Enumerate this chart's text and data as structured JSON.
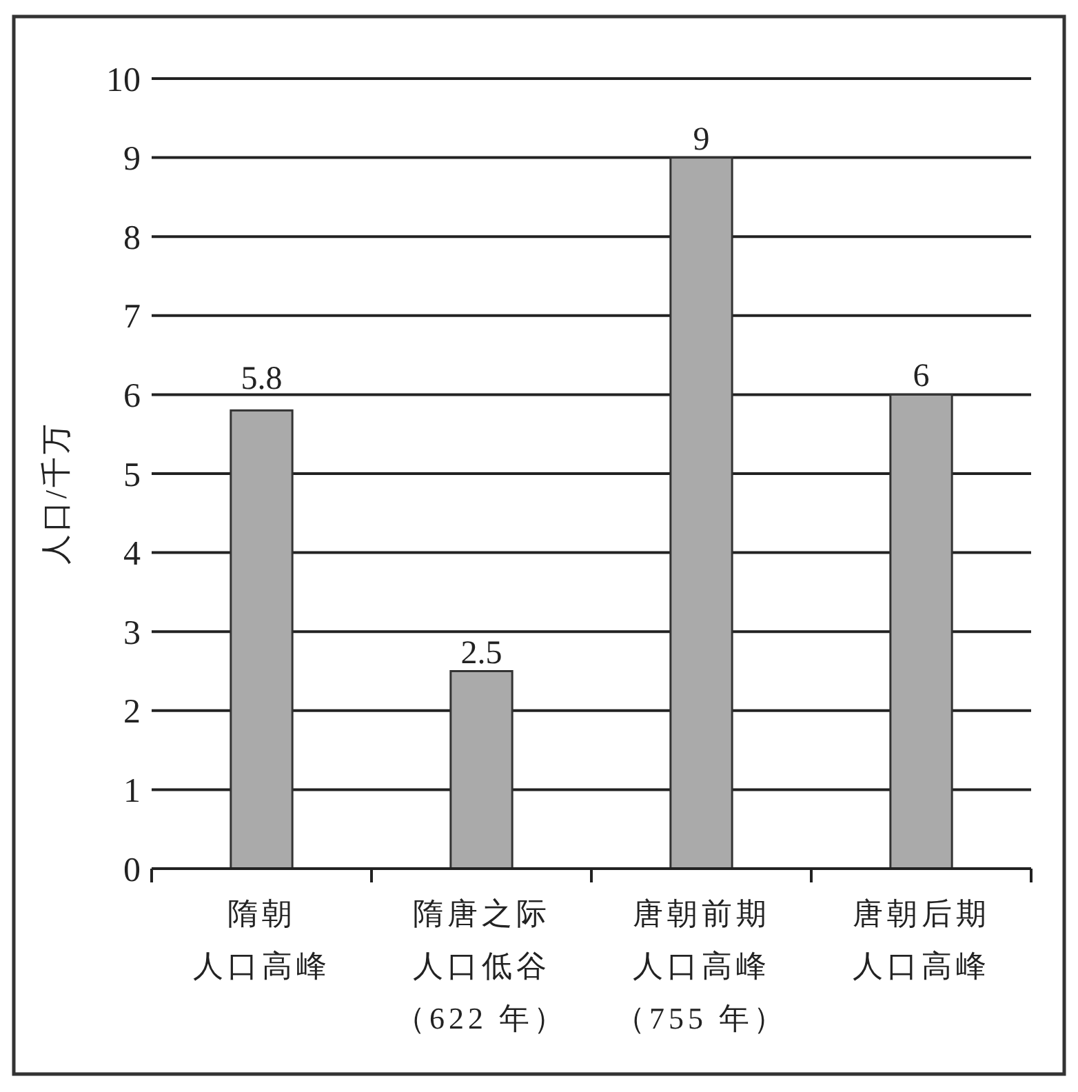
{
  "chart_data": {
    "type": "bar",
    "ylabel": "人口/千万",
    "categories": [
      "隋朝人口高峰",
      "隋唐之际人口低谷（622 年）",
      "唐朝前期人口高峰（755 年）",
      "唐朝后期人口高峰"
    ],
    "values": [
      5.8,
      2.5,
      9,
      6
    ],
    "color": "#aaaaaa",
    "ylim": [
      0,
      10
    ],
    "yticks": [
      0,
      1,
      2,
      3,
      4,
      5,
      6,
      7,
      8,
      9,
      10
    ],
    "grid": "y",
    "data_labels": true
  }
}
